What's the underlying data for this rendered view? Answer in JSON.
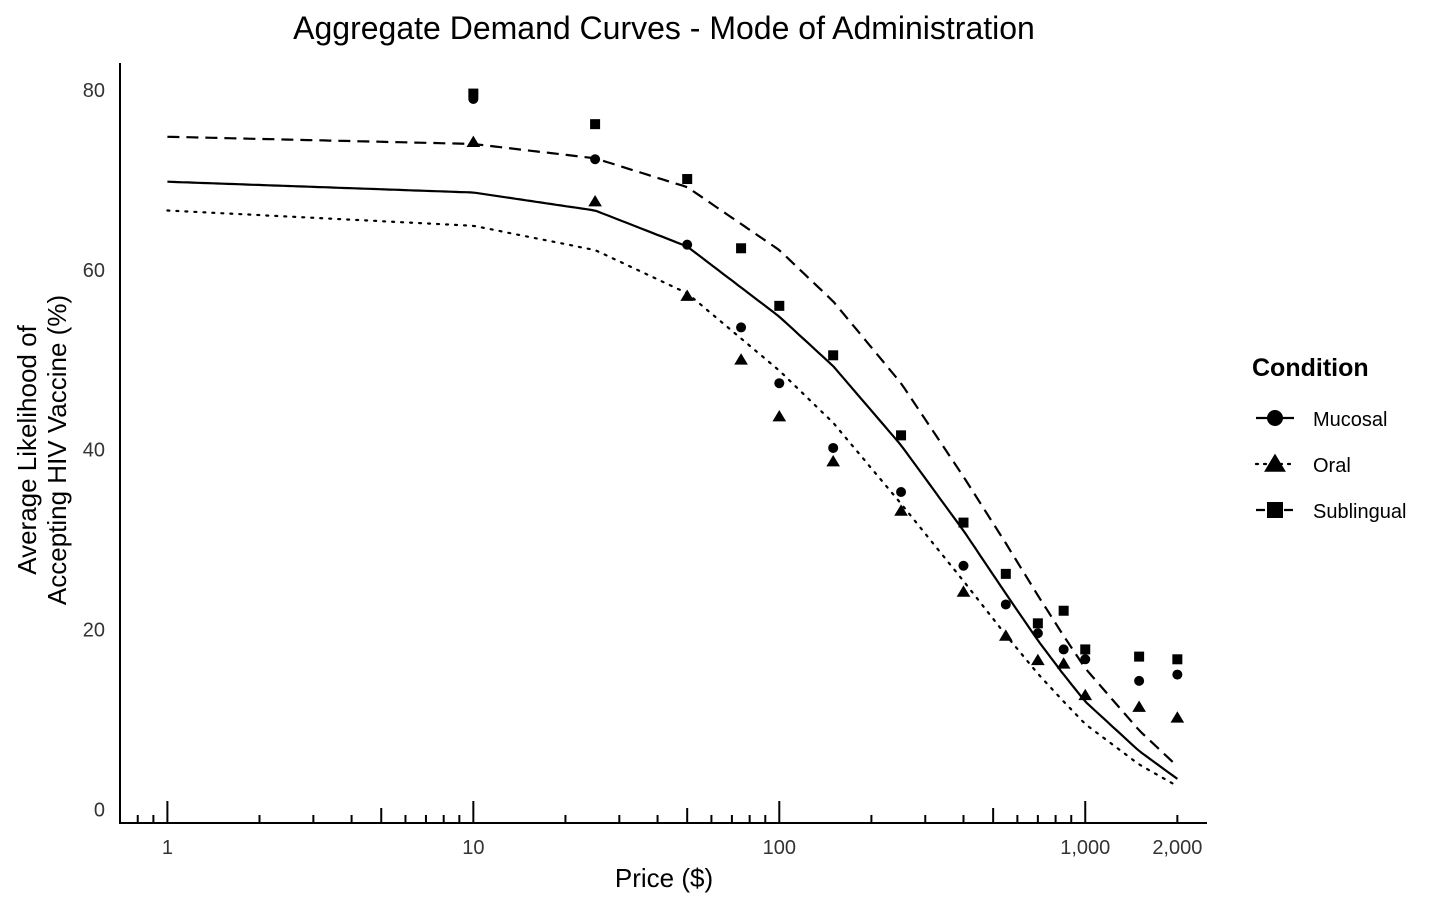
{
  "chart_data": {
    "type": "scatter",
    "title": "Aggregate Demand Curves - Mode of Administration",
    "xlabel": "Price ($)",
    "ylabel_lines": [
      "Average Likelihood of",
      "Accepting HIV Vaccine (%)"
    ],
    "x_scale": "log",
    "xlim": [
      0.7,
      2500
    ],
    "ylim": [
      -1.5,
      83
    ],
    "x_ticks": [
      {
        "value": 1,
        "label": "1"
      },
      {
        "value": 10,
        "label": "10"
      },
      {
        "value": 100,
        "label": "100"
      },
      {
        "value": 1000,
        "label": "1,000"
      },
      {
        "value": 2000,
        "label": "2,000"
      }
    ],
    "y_ticks": [
      {
        "value": 0,
        "label": "0"
      },
      {
        "value": 20,
        "label": "20"
      },
      {
        "value": 40,
        "label": "40"
      },
      {
        "value": 60,
        "label": "60"
      },
      {
        "value": 80,
        "label": "80"
      }
    ],
    "grid": false,
    "legend": {
      "title": "Condition",
      "position": "right"
    },
    "x": [
      10,
      25,
      50,
      75,
      100,
      150,
      250,
      400,
      550,
      700,
      850,
      1000,
      1500,
      2000
    ],
    "series": [
      {
        "name": "Mucosal",
        "marker": "circle",
        "line": "solid",
        "values": [
          79.0,
          72.3,
          62.8,
          53.6,
          47.4,
          40.2,
          35.3,
          27.1,
          22.8,
          19.6,
          17.8,
          16.7,
          14.3,
          15.0
        ],
        "fit": [
          [
            1,
            69.8
          ],
          [
            10,
            68.6
          ],
          [
            25,
            66.6
          ],
          [
            50,
            62.6
          ],
          [
            100,
            54.8
          ],
          [
            150,
            49.3
          ],
          [
            250,
            40.5
          ],
          [
            400,
            31.0
          ],
          [
            550,
            24.0
          ],
          [
            700,
            18.8
          ],
          [
            850,
            15.0
          ],
          [
            1000,
            12.0
          ],
          [
            1500,
            6.5
          ],
          [
            2000,
            3.4
          ]
        ]
      },
      {
        "name": "Oral",
        "marker": "triangle",
        "line": "dotted",
        "values": [
          74.2,
          67.6,
          57.1,
          50.0,
          43.7,
          38.7,
          33.2,
          24.2,
          19.3,
          16.6,
          16.2,
          12.7,
          11.4,
          10.2
        ],
        "fit": [
          [
            1,
            66.6
          ],
          [
            10,
            64.9
          ],
          [
            25,
            62.2
          ],
          [
            50,
            57.4
          ],
          [
            100,
            48.8
          ],
          [
            150,
            43.0
          ],
          [
            250,
            34.0
          ],
          [
            400,
            25.4
          ],
          [
            550,
            19.4
          ],
          [
            700,
            15.1
          ],
          [
            850,
            12.0
          ],
          [
            1000,
            9.5
          ],
          [
            1500,
            5.0
          ],
          [
            2000,
            2.6
          ]
        ]
      },
      {
        "name": "Sublingual",
        "marker": "square",
        "line": "dashed",
        "values": [
          79.6,
          76.2,
          70.1,
          62.4,
          56.0,
          50.5,
          41.6,
          31.9,
          26.2,
          20.7,
          22.1,
          17.8,
          17.0,
          16.7
        ],
        "fit": [
          [
            1,
            74.8
          ],
          [
            10,
            74.0
          ],
          [
            25,
            72.4
          ],
          [
            50,
            69.2
          ],
          [
            100,
            62.2
          ],
          [
            150,
            56.5
          ],
          [
            250,
            47.4
          ],
          [
            400,
            37.0
          ],
          [
            550,
            29.6
          ],
          [
            700,
            23.8
          ],
          [
            850,
            19.3
          ],
          [
            1000,
            15.7
          ],
          [
            1500,
            8.8
          ],
          [
            2000,
            4.8
          ]
        ]
      }
    ]
  }
}
